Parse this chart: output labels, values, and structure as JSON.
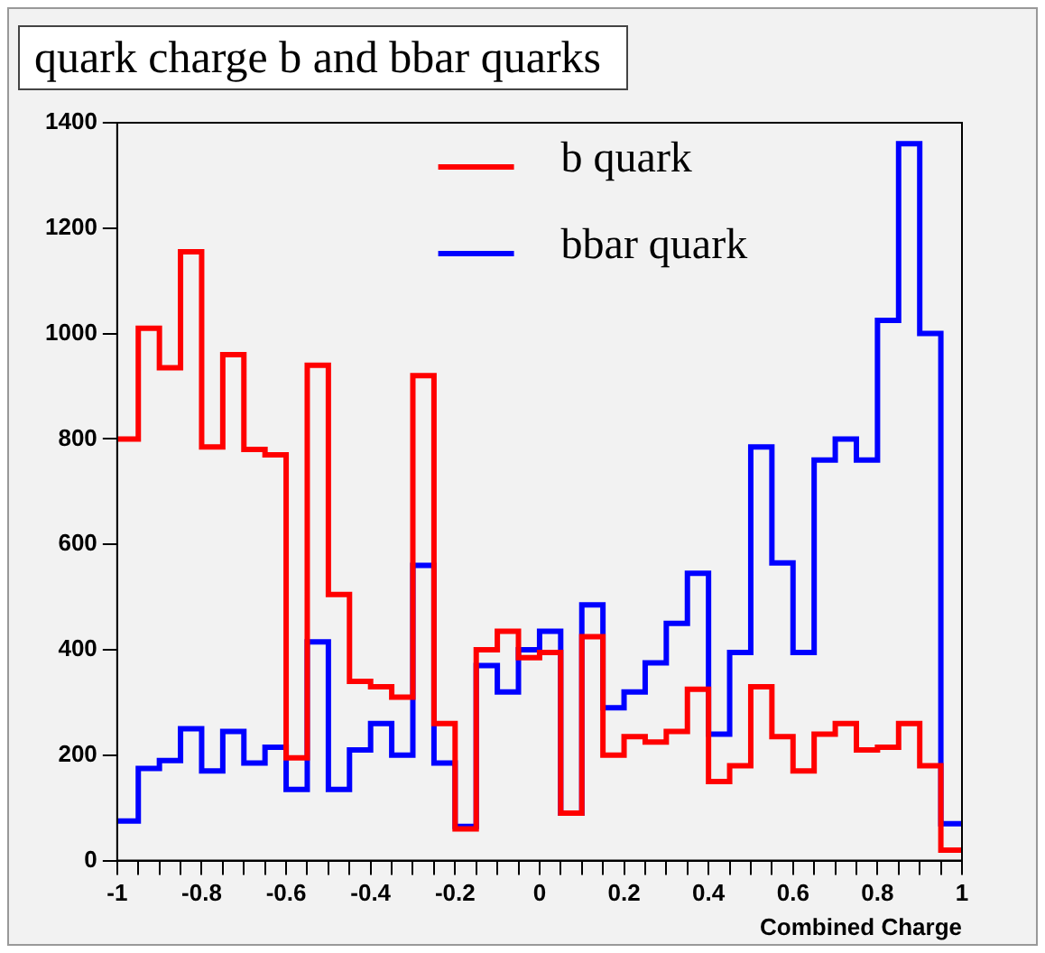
{
  "chart_data": {
    "type": "histogram",
    "title": "quark charge b and bbar quarks",
    "xlabel": "Combined Charge",
    "bins": [
      -1,
      -0.95,
      -0.9,
      -0.85,
      -0.8,
      -0.75,
      -0.7,
      -0.65,
      -0.6,
      -0.55,
      -0.5,
      -0.45,
      -0.4,
      -0.35,
      -0.3,
      -0.25,
      -0.2,
      -0.15,
      -0.1,
      -0.05,
      0,
      0.05,
      0.1,
      0.15,
      0.2,
      0.25,
      0.3,
      0.35,
      0.4,
      0.45,
      0.5,
      0.55,
      0.6,
      0.65,
      0.7,
      0.75,
      0.8,
      0.85,
      0.9,
      0.95,
      1
    ],
    "series": [
      {
        "name": "b quark",
        "color": "#ff0000",
        "values": [
          800,
          1010,
          935,
          1155,
          785,
          960,
          780,
          770,
          195,
          940,
          505,
          340,
          330,
          310,
          920,
          260,
          60,
          400,
          435,
          385,
          395,
          90,
          425,
          200,
          235,
          225,
          245,
          325,
          150,
          180,
          330,
          235,
          170,
          240,
          260,
          210,
          215,
          260,
          180,
          20
        ]
      },
      {
        "name": "bbar quark",
        "color": "#0000ff",
        "values": [
          75,
          175,
          190,
          250,
          170,
          245,
          185,
          215,
          135,
          415,
          135,
          210,
          260,
          200,
          560,
          185,
          65,
          370,
          320,
          400,
          435,
          90,
          485,
          290,
          320,
          375,
          450,
          545,
          240,
          395,
          785,
          565,
          395,
          760,
          800,
          760,
          1025,
          1360,
          1000,
          70
        ]
      }
    ],
    "xlim": [
      -1,
      1
    ],
    "xticks": [
      -1,
      {
        "value": -0.95,
        "label": null
      },
      {
        "value": -0.9,
        "label": null
      },
      {
        "value": -0.85,
        "label": null
      },
      -0.8,
      {
        "value": -0.75,
        "label": null
      },
      {
        "value": -0.7,
        "label": null
      },
      {
        "value": -0.65,
        "label": null
      },
      -0.6,
      {
        "value": -0.55,
        "label": null
      },
      {
        "value": -0.5,
        "label": null
      },
      {
        "value": -0.45,
        "label": null
      },
      -0.4,
      {
        "value": -0.35,
        "label": null
      },
      {
        "value": -0.3,
        "label": null
      },
      {
        "value": -0.25,
        "label": null
      },
      -0.2,
      {
        "value": -0.15,
        "label": null
      },
      {
        "value": -0.1,
        "label": null
      },
      {
        "value": -0.05,
        "label": null
      },
      0,
      {
        "value": 0.05,
        "label": null
      },
      {
        "value": 0.1,
        "label": null
      },
      {
        "value": 0.15,
        "label": null
      },
      0.2,
      {
        "value": 0.25,
        "label": null
      },
      {
        "value": 0.3,
        "label": null
      },
      {
        "value": 0.35,
        "label": null
      },
      0.4,
      {
        "value": 0.45,
        "label": null
      },
      {
        "value": 0.5,
        "label": null
      },
      {
        "value": 0.55,
        "label": null
      },
      0.6,
      {
        "value": 0.65,
        "label": null
      },
      {
        "value": 0.7,
        "label": null
      },
      {
        "value": 0.75,
        "label": null
      },
      0.8,
      {
        "value": 0.85,
        "label": null
      },
      {
        "value": 0.9,
        "label": null
      },
      {
        "value": 0.95,
        "label": null
      },
      1
    ],
    "ylim": [
      0,
      1400
    ],
    "yticks": [
      0,
      200,
      400,
      600,
      800,
      1000,
      1200,
      1400
    ],
    "legend": "top",
    "grid": false
  }
}
